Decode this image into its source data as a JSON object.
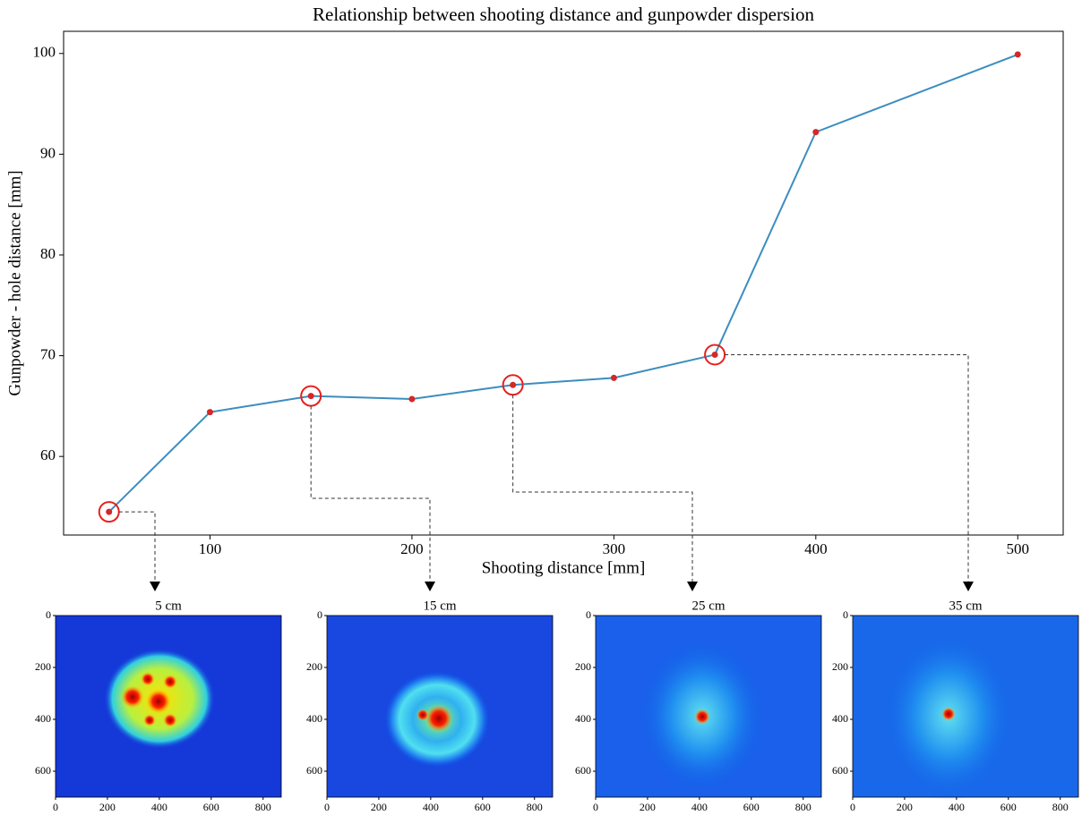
{
  "chart_data": [
    {
      "type": "line",
      "title": "Relationship between shooting distance and gunpowder dispersion",
      "x_label": "Shooting distance [mm]",
      "y_label": "Gunpowder - hole distance [mm]",
      "x": [
        50,
        100,
        150,
        200,
        250,
        300,
        350,
        400,
        500
      ],
      "series": [
        {
          "color": "#3b8dc0",
          "marker_color": "#d62728",
          "values": [
            54.5,
            64.4,
            66.0,
            65.7,
            67.1,
            67.8,
            70.1,
            92.2,
            99.9
          ]
        }
      ],
      "highlight": [
        0,
        2,
        4,
        6
      ],
      "highlight_color": "#e8201c",
      "xlim": [
        27.5,
        522.5
      ],
      "ylim": [
        52.2,
        102.2
      ],
      "xticks": [
        100,
        200,
        300,
        400,
        500
      ],
      "yticks": [
        60,
        70,
        80,
        90,
        100
      ]
    },
    {
      "type": "heatmap",
      "title": "5 cm",
      "xlim": [
        0,
        870
      ],
      "ylim": [
        700,
        0
      ],
      "xticks": [
        0,
        200,
        400,
        600,
        800
      ],
      "yticks": [
        0,
        200,
        400,
        600
      ]
    },
    {
      "type": "heatmap",
      "title": "15 cm",
      "xlim": [
        0,
        870
      ],
      "ylim": [
        700,
        0
      ],
      "xticks": [
        0,
        200,
        400,
        600,
        800
      ],
      "yticks": [
        0,
        200,
        400,
        600
      ]
    },
    {
      "type": "heatmap",
      "title": "25 cm",
      "xlim": [
        0,
        870
      ],
      "ylim": [
        700,
        0
      ],
      "xticks": [
        0,
        200,
        400,
        600,
        800
      ],
      "yticks": [
        0,
        200,
        400,
        600
      ]
    },
    {
      "type": "heatmap",
      "title": "35 cm",
      "xlim": [
        0,
        870
      ],
      "ylim": [
        700,
        0
      ],
      "xticks": [
        0,
        200,
        400,
        600,
        800
      ],
      "yticks": [
        0,
        200,
        400,
        600
      ]
    }
  ]
}
